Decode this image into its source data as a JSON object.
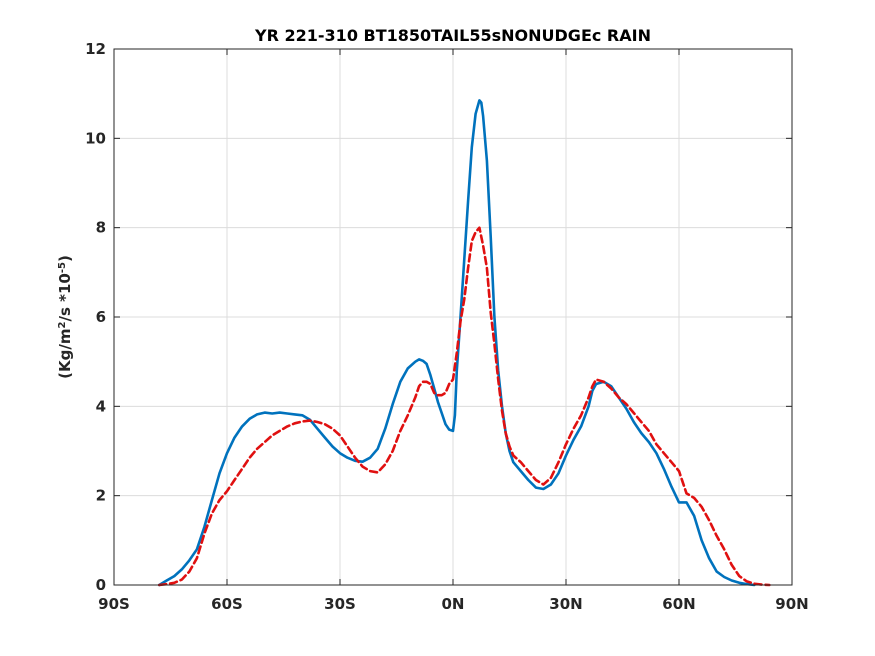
{
  "chart_data": {
    "type": "line",
    "title": "YR 221-310 BT1850TAIL55sNONUDGEc RAIN",
    "ylabel_base": "(Kg/m",
    "ylabel_sup1": "2",
    "ylabel_mid": "/s   *10",
    "ylabel_sup2": "-5",
    "ylabel_end": ")",
    "xlim": [
      -90,
      90
    ],
    "ylim": [
      0,
      12
    ],
    "xticks": [
      -90,
      -60,
      -30,
      0,
      30,
      60,
      90
    ],
    "xtick_labels": [
      "90S",
      "60S",
      "30S",
      "0N",
      "30N",
      "60N",
      "90N"
    ],
    "yticks": [
      0,
      2,
      4,
      6,
      8,
      10,
      12
    ],
    "ytick_labels": [
      "0",
      "2",
      "4",
      "6",
      "8",
      "10",
      "12"
    ],
    "grid": true,
    "series": [
      {
        "style": "solid",
        "color": "#0072bd",
        "points": [
          [
            -78,
            0.0
          ],
          [
            -76,
            0.1
          ],
          [
            -74,
            0.2
          ],
          [
            -72,
            0.35
          ],
          [
            -70,
            0.55
          ],
          [
            -68,
            0.8
          ],
          [
            -66,
            1.3
          ],
          [
            -64,
            1.9
          ],
          [
            -62,
            2.5
          ],
          [
            -60,
            2.95
          ],
          [
            -58,
            3.3
          ],
          [
            -56,
            3.55
          ],
          [
            -54,
            3.72
          ],
          [
            -52,
            3.82
          ],
          [
            -50,
            3.86
          ],
          [
            -48,
            3.84
          ],
          [
            -46,
            3.86
          ],
          [
            -44,
            3.84
          ],
          [
            -42,
            3.82
          ],
          [
            -40,
            3.8
          ],
          [
            -38,
            3.7
          ],
          [
            -36,
            3.5
          ],
          [
            -34,
            3.3
          ],
          [
            -32,
            3.1
          ],
          [
            -30,
            2.95
          ],
          [
            -28,
            2.85
          ],
          [
            -26,
            2.78
          ],
          [
            -24,
            2.76
          ],
          [
            -22,
            2.85
          ],
          [
            -20,
            3.05
          ],
          [
            -18,
            3.5
          ],
          [
            -16,
            4.05
          ],
          [
            -14,
            4.55
          ],
          [
            -12,
            4.85
          ],
          [
            -10,
            5.0
          ],
          [
            -9,
            5.05
          ],
          [
            -8,
            5.02
          ],
          [
            -7,
            4.95
          ],
          [
            -6,
            4.7
          ],
          [
            -5,
            4.4
          ],
          [
            -4,
            4.1
          ],
          [
            -3,
            3.85
          ],
          [
            -2,
            3.6
          ],
          [
            -1,
            3.48
          ],
          [
            0,
            3.45
          ],
          [
            0.5,
            3.8
          ],
          [
            1,
            4.8
          ],
          [
            2,
            6.0
          ],
          [
            3,
            7.3
          ],
          [
            4,
            8.6
          ],
          [
            5,
            9.8
          ],
          [
            6,
            10.55
          ],
          [
            7,
            10.85
          ],
          [
            7.5,
            10.8
          ],
          [
            8,
            10.5
          ],
          [
            9,
            9.5
          ],
          [
            10,
            7.8
          ],
          [
            11,
            6.0
          ],
          [
            12,
            4.8
          ],
          [
            13,
            4.0
          ],
          [
            14,
            3.4
          ],
          [
            15,
            3.0
          ],
          [
            16,
            2.75
          ],
          [
            18,
            2.55
          ],
          [
            20,
            2.35
          ],
          [
            22,
            2.18
          ],
          [
            24,
            2.15
          ],
          [
            26,
            2.25
          ],
          [
            28,
            2.5
          ],
          [
            30,
            2.9
          ],
          [
            32,
            3.25
          ],
          [
            34,
            3.55
          ],
          [
            36,
            4.0
          ],
          [
            37,
            4.35
          ],
          [
            38,
            4.5
          ],
          [
            40,
            4.55
          ],
          [
            42,
            4.45
          ],
          [
            44,
            4.2
          ],
          [
            46,
            3.95
          ],
          [
            48,
            3.65
          ],
          [
            50,
            3.4
          ],
          [
            52,
            3.2
          ],
          [
            54,
            2.95
          ],
          [
            56,
            2.6
          ],
          [
            58,
            2.2
          ],
          [
            60,
            1.85
          ],
          [
            62,
            1.85
          ],
          [
            64,
            1.55
          ],
          [
            66,
            1.0
          ],
          [
            68,
            0.6
          ],
          [
            70,
            0.3
          ],
          [
            72,
            0.18
          ],
          [
            74,
            0.1
          ],
          [
            76,
            0.05
          ],
          [
            78,
            0.02
          ],
          [
            80,
            0.0
          ]
        ]
      },
      {
        "style": "dashed",
        "color": "#e01010",
        "points": [
          [
            -78,
            0.0
          ],
          [
            -76,
            0.02
          ],
          [
            -74,
            0.05
          ],
          [
            -72,
            0.12
          ],
          [
            -70,
            0.3
          ],
          [
            -68,
            0.6
          ],
          [
            -66,
            1.15
          ],
          [
            -64,
            1.6
          ],
          [
            -62,
            1.9
          ],
          [
            -60,
            2.1
          ],
          [
            -58,
            2.35
          ],
          [
            -56,
            2.6
          ],
          [
            -54,
            2.85
          ],
          [
            -52,
            3.05
          ],
          [
            -50,
            3.2
          ],
          [
            -48,
            3.35
          ],
          [
            -46,
            3.45
          ],
          [
            -44,
            3.55
          ],
          [
            -42,
            3.62
          ],
          [
            -40,
            3.66
          ],
          [
            -38,
            3.68
          ],
          [
            -36,
            3.65
          ],
          [
            -34,
            3.6
          ],
          [
            -32,
            3.5
          ],
          [
            -30,
            3.35
          ],
          [
            -28,
            3.1
          ],
          [
            -26,
            2.85
          ],
          [
            -24,
            2.65
          ],
          [
            -22,
            2.55
          ],
          [
            -20,
            2.52
          ],
          [
            -18,
            2.7
          ],
          [
            -16,
            3.0
          ],
          [
            -14,
            3.45
          ],
          [
            -12,
            3.8
          ],
          [
            -10,
            4.2
          ],
          [
            -9,
            4.45
          ],
          [
            -8,
            4.55
          ],
          [
            -7,
            4.55
          ],
          [
            -6,
            4.5
          ],
          [
            -5,
            4.3
          ],
          [
            -4,
            4.25
          ],
          [
            -3,
            4.25
          ],
          [
            -2,
            4.3
          ],
          [
            -1,
            4.5
          ],
          [
            0,
            4.6
          ],
          [
            1,
            5.2
          ],
          [
            2,
            5.9
          ],
          [
            3,
            6.4
          ],
          [
            4,
            7.1
          ],
          [
            5,
            7.7
          ],
          [
            6,
            7.9
          ],
          [
            7,
            8.0
          ],
          [
            8,
            7.6
          ],
          [
            9,
            7.1
          ],
          [
            10,
            6.1
          ],
          [
            11,
            5.4
          ],
          [
            12,
            4.6
          ],
          [
            13,
            3.9
          ],
          [
            14,
            3.4
          ],
          [
            15,
            3.1
          ],
          [
            16,
            2.9
          ],
          [
            18,
            2.75
          ],
          [
            20,
            2.55
          ],
          [
            22,
            2.35
          ],
          [
            24,
            2.25
          ],
          [
            26,
            2.4
          ],
          [
            28,
            2.75
          ],
          [
            30,
            3.15
          ],
          [
            32,
            3.5
          ],
          [
            34,
            3.8
          ],
          [
            36,
            4.2
          ],
          [
            37,
            4.45
          ],
          [
            38,
            4.6
          ],
          [
            40,
            4.55
          ],
          [
            42,
            4.4
          ],
          [
            44,
            4.2
          ],
          [
            46,
            4.05
          ],
          [
            48,
            3.85
          ],
          [
            50,
            3.65
          ],
          [
            52,
            3.45
          ],
          [
            54,
            3.15
          ],
          [
            56,
            2.95
          ],
          [
            58,
            2.75
          ],
          [
            60,
            2.55
          ],
          [
            62,
            2.05
          ],
          [
            64,
            1.95
          ],
          [
            66,
            1.75
          ],
          [
            68,
            1.45
          ],
          [
            70,
            1.1
          ],
          [
            72,
            0.8
          ],
          [
            74,
            0.45
          ],
          [
            76,
            0.2
          ],
          [
            78,
            0.08
          ],
          [
            80,
            0.03
          ],
          [
            82,
            0.01
          ],
          [
            84,
            0.0
          ]
        ]
      }
    ]
  }
}
